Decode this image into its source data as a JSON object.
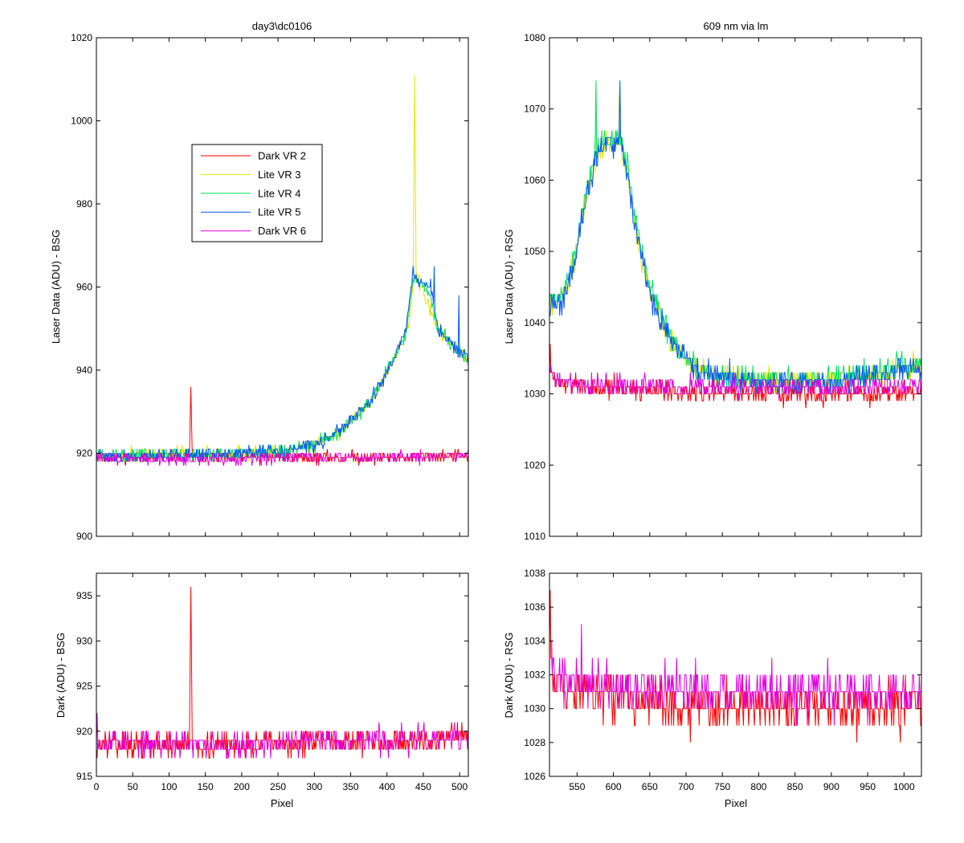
{
  "figure": {
    "background": "#ffffff"
  },
  "colors": {
    "Dark VR 2": "#ff0000",
    "Lite VR 3": "#e6e600",
    "Lite VR 4": "#00e05a",
    "Lite VR 5": "#0055ff",
    "Dark VR 6": "#e000e0"
  },
  "chart_data": [
    {
      "id": "top_left",
      "type": "line",
      "title": "day3\\dc0106",
      "xlabel": "",
      "ylabel": "Laser Data (ADU) - BSG",
      "xlim": [
        0,
        512
      ],
      "ylim": [
        900,
        1020
      ],
      "xticks": [],
      "yticks": [
        900,
        920,
        940,
        960,
        980,
        1000,
        1020
      ],
      "legend": {
        "location": "upper-left-inside",
        "entries": [
          "Dark VR 2",
          "Lite VR 3",
          "Lite VR 4",
          "Lite VR 5",
          "Dark VR 6"
        ]
      },
      "series": [
        {
          "name": "Dark VR 2",
          "color": "#ff0000",
          "noise": 1.0,
          "seed": 11,
          "points": [
            [
              0,
              919
            ],
            [
              100,
              919
            ],
            [
              200,
              919
            ],
            [
              300,
              919
            ],
            [
              400,
              919
            ],
            [
              512,
              919.5
            ]
          ],
          "spikes": [
            [
              129,
              928
            ],
            [
              130,
              936
            ],
            [
              131,
              927
            ]
          ]
        },
        {
          "name": "Lite VR 3",
          "color": "#e6e600",
          "noise": 1.1,
          "seed": 21,
          "points": [
            [
              0,
              919.5
            ],
            [
              200,
              920
            ],
            [
              260,
              920.5
            ],
            [
              300,
              922
            ],
            [
              340,
              926
            ],
            [
              380,
              933
            ],
            [
              410,
              943
            ],
            [
              425,
              948
            ],
            [
              433,
              955
            ],
            [
              436,
              962
            ],
            [
              440,
              964
            ],
            [
              450,
              958
            ],
            [
              470,
              950
            ],
            [
              490,
              946
            ],
            [
              512,
              942
            ]
          ],
          "spikes": [
            [
              437,
              985
            ],
            [
              438,
              1011
            ],
            [
              439,
              992
            ]
          ]
        },
        {
          "name": "Lite VR 4",
          "color": "#00e05a",
          "noise": 1.1,
          "seed": 31,
          "points": [
            [
              0,
              919.5
            ],
            [
              200,
              920
            ],
            [
              260,
              920.5
            ],
            [
              300,
              922
            ],
            [
              340,
              926
            ],
            [
              380,
              933
            ],
            [
              410,
              943
            ],
            [
              425,
              948
            ],
            [
              432,
              956
            ],
            [
              436,
              962
            ],
            [
              440,
              962
            ],
            [
              460,
              958
            ],
            [
              470,
              950
            ],
            [
              490,
              946
            ],
            [
              512,
              942
            ]
          ],
          "spikes": []
        },
        {
          "name": "Lite VR 5",
          "color": "#0055ff",
          "noise": 1.1,
          "seed": 41,
          "points": [
            [
              0,
              919
            ],
            [
              200,
              920
            ],
            [
              260,
              920.5
            ],
            [
              300,
              922
            ],
            [
              340,
              926
            ],
            [
              380,
              933
            ],
            [
              410,
              943
            ],
            [
              425,
              949
            ],
            [
              432,
              958
            ],
            [
              436,
              964
            ],
            [
              440,
              962
            ],
            [
              460,
              960
            ],
            [
              470,
              950
            ],
            [
              490,
              946
            ],
            [
              512,
              942
            ]
          ],
          "spikes": [
            [
              465,
              965
            ],
            [
              499,
              958
            ]
          ]
        },
        {
          "name": "Dark VR 6",
          "color": "#e000e0",
          "noise": 1.0,
          "seed": 51,
          "points": [
            [
              0,
              919
            ],
            [
              100,
              918.5
            ],
            [
              200,
              918.5
            ],
            [
              300,
              919
            ],
            [
              400,
              919
            ],
            [
              512,
              919.5
            ]
          ],
          "spikes": []
        }
      ]
    },
    {
      "id": "top_right",
      "type": "line",
      "title": "609 nm via lm",
      "xlabel": "",
      "ylabel": "Laser Data (ADU) - RSG",
      "xlim": [
        512,
        1024
      ],
      "ylim": [
        1010,
        1080
      ],
      "xticks": [],
      "yticks": [
        1010,
        1020,
        1030,
        1040,
        1050,
        1060,
        1070,
        1080
      ],
      "series": [
        {
          "name": "Dark VR 2",
          "color": "#ff0000",
          "noise": 1.0,
          "seed": 12,
          "points": [
            [
              512,
              1034
            ],
            [
              520,
              1031.5
            ],
            [
              560,
              1031
            ],
            [
              650,
              1030.5
            ],
            [
              750,
              1030
            ],
            [
              850,
              1030
            ],
            [
              950,
              1030
            ],
            [
              1024,
              1030.5
            ]
          ],
          "spikes": [
            [
              513,
              1037
            ]
          ]
        },
        {
          "name": "Lite VR 3",
          "color": "#e6e600",
          "noise": 1.2,
          "seed": 22,
          "points": [
            [
              512,
              1042
            ],
            [
              530,
              1043
            ],
            [
              545,
              1048
            ],
            [
              560,
              1056
            ],
            [
              575,
              1063
            ],
            [
              590,
              1066
            ],
            [
              600,
              1065
            ],
            [
              610,
              1065
            ],
            [
              620,
              1060
            ],
            [
              635,
              1051
            ],
            [
              650,
              1044
            ],
            [
              670,
              1039
            ],
            [
              690,
              1036
            ],
            [
              720,
              1033
            ],
            [
              800,
              1032
            ],
            [
              900,
              1032
            ],
            [
              960,
              1032.5
            ],
            [
              1000,
              1033.5
            ],
            [
              1024,
              1034
            ]
          ],
          "spikes": [
            [
              576,
              1073
            ],
            [
              608,
              1072
            ]
          ]
        },
        {
          "name": "Lite VR 4",
          "color": "#00e05a",
          "noise": 1.2,
          "seed": 32,
          "points": [
            [
              512,
              1043
            ],
            [
              530,
              1044
            ],
            [
              545,
              1049
            ],
            [
              560,
              1057
            ],
            [
              575,
              1064
            ],
            [
              590,
              1066
            ],
            [
              600,
              1065
            ],
            [
              610,
              1066
            ],
            [
              620,
              1061
            ],
            [
              635,
              1052
            ],
            [
              650,
              1045
            ],
            [
              670,
              1040
            ],
            [
              690,
              1036
            ],
            [
              720,
              1033
            ],
            [
              800,
              1032
            ],
            [
              900,
              1032
            ],
            [
              960,
              1033
            ],
            [
              1000,
              1034
            ],
            [
              1024,
              1034
            ]
          ],
          "spikes": [
            [
              576,
              1074
            ]
          ]
        },
        {
          "name": "Lite VR 5",
          "color": "#0055ff",
          "noise": 1.2,
          "seed": 42,
          "points": [
            [
              512,
              1042
            ],
            [
              530,
              1043
            ],
            [
              545,
              1048
            ],
            [
              560,
              1056
            ],
            [
              575,
              1063
            ],
            [
              590,
              1065
            ],
            [
              600,
              1065
            ],
            [
              610,
              1066
            ],
            [
              620,
              1060
            ],
            [
              635,
              1051
            ],
            [
              650,
              1044
            ],
            [
              670,
              1039
            ],
            [
              690,
              1036
            ],
            [
              720,
              1033
            ],
            [
              800,
              1031.5
            ],
            [
              900,
              1031.5
            ],
            [
              960,
              1032.5
            ],
            [
              1000,
              1033.5
            ],
            [
              1024,
              1034
            ]
          ],
          "spikes": [
            [
              609,
              1074
            ]
          ]
        },
        {
          "name": "Dark VR 6",
          "color": "#e000e0",
          "noise": 1.0,
          "seed": 52,
          "points": [
            [
              512,
              1034
            ],
            [
              520,
              1032
            ],
            [
              560,
              1031.5
            ],
            [
              650,
              1031
            ],
            [
              750,
              1031
            ],
            [
              850,
              1031
            ],
            [
              950,
              1031
            ],
            [
              1024,
              1031
            ]
          ],
          "spikes": []
        }
      ]
    },
    {
      "id": "bottom_left",
      "type": "line",
      "title": "",
      "xlabel": "Pixel",
      "ylabel": "Dark (ADU) - BSG",
      "xlim": [
        0,
        512
      ],
      "ylim": [
        915,
        937.5
      ],
      "xticks": [
        0,
        50,
        100,
        150,
        200,
        250,
        300,
        350,
        400,
        450,
        500
      ],
      "yticks": [
        915,
        920,
        925,
        930,
        935
      ],
      "series": [
        {
          "name": "Dark VR 2",
          "color": "#ff0000",
          "noise": 1.0,
          "seed": 13,
          "points": [
            [
              0,
              918.5
            ],
            [
              100,
              918.5
            ],
            [
              200,
              918.5
            ],
            [
              300,
              918.8
            ],
            [
              400,
              919
            ],
            [
              512,
              919.2
            ]
          ],
          "spikes": [
            [
              129,
              928
            ],
            [
              130,
              936
            ],
            [
              131,
              927
            ]
          ]
        },
        {
          "name": "Dark VR 6",
          "color": "#e000e0",
          "noise": 1.0,
          "seed": 53,
          "points": [
            [
              0,
              919
            ],
            [
              100,
              918.5
            ],
            [
              200,
              918.5
            ],
            [
              300,
              919
            ],
            [
              400,
              919
            ],
            [
              512,
              919.2
            ]
          ],
          "spikes": [
            [
              1,
              922
            ]
          ]
        }
      ]
    },
    {
      "id": "bottom_right",
      "type": "line",
      "title": "",
      "xlabel": "Pixel",
      "ylabel": "Dark (ADU) - RSG",
      "xlim": [
        512,
        1024
      ],
      "ylim": [
        1026,
        1038
      ],
      "xticks": [
        550,
        600,
        650,
        700,
        750,
        800,
        850,
        900,
        950,
        1000
      ],
      "yticks": [
        1026,
        1028,
        1030,
        1032,
        1034,
        1036,
        1038
      ],
      "series": [
        {
          "name": "Dark VR 2",
          "color": "#ff0000",
          "noise": 1.0,
          "seed": 14,
          "points": [
            [
              512,
              1034
            ],
            [
              520,
              1031.5
            ],
            [
              560,
              1031
            ],
            [
              650,
              1030.5
            ],
            [
              750,
              1030
            ],
            [
              850,
              1030
            ],
            [
              950,
              1030
            ],
            [
              1024,
              1030.5
            ]
          ],
          "spikes": [
            [
              513,
              1037
            ]
          ]
        },
        {
          "name": "Dark VR 6",
          "color": "#e000e0",
          "noise": 0.9,
          "seed": 54,
          "points": [
            [
              512,
              1034
            ],
            [
              520,
              1032
            ],
            [
              560,
              1031.5
            ],
            [
              650,
              1031
            ],
            [
              750,
              1031
            ],
            [
              850,
              1031
            ],
            [
              950,
              1031
            ],
            [
              1024,
              1031
            ]
          ],
          "spikes": [
            [
              556,
              1035
            ]
          ]
        }
      ]
    }
  ]
}
